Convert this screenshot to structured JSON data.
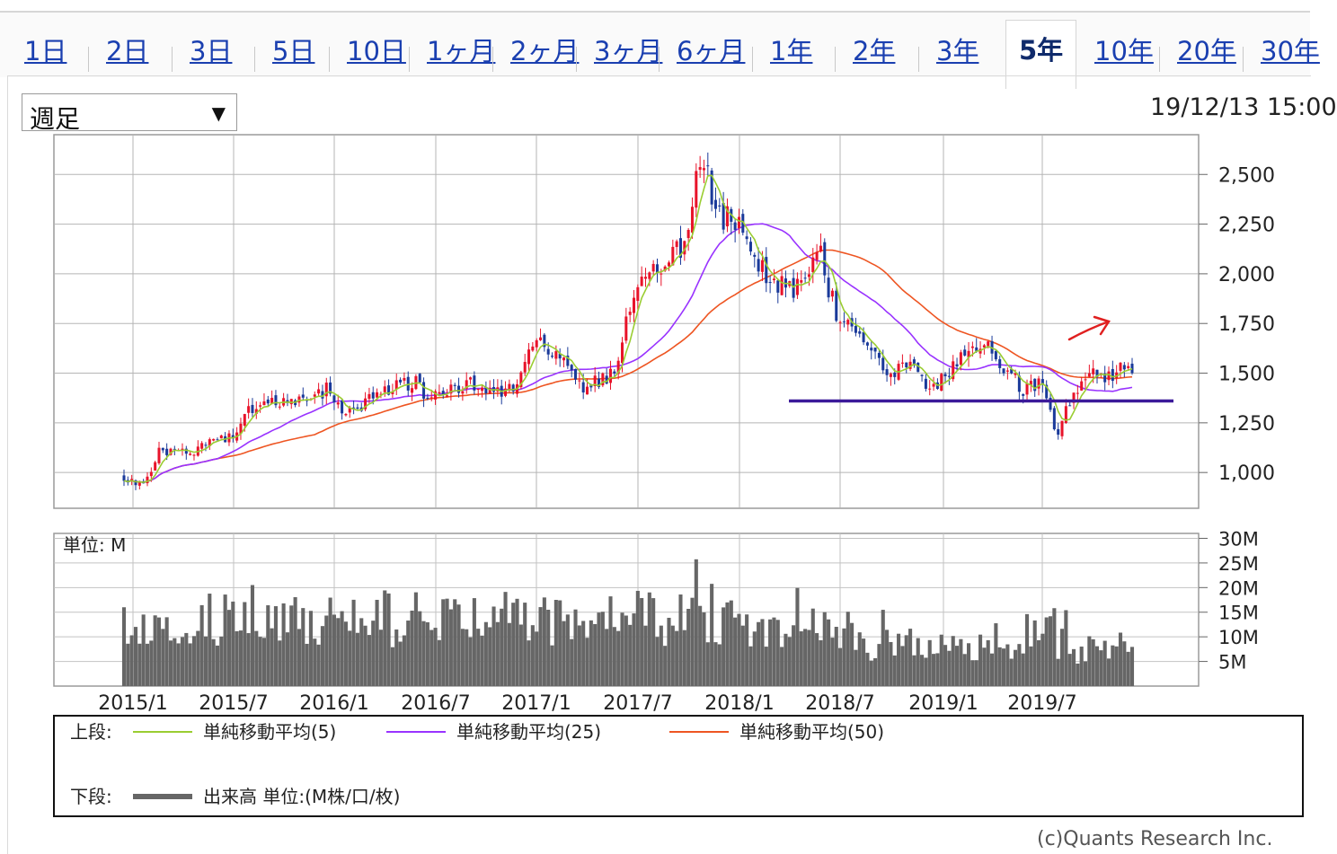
{
  "tabs": [
    {
      "label": "1日",
      "active": false
    },
    {
      "label": "2日",
      "active": false
    },
    {
      "label": "3日",
      "active": false
    },
    {
      "label": "5日",
      "active": false
    },
    {
      "label": "10日",
      "active": false
    },
    {
      "label": "1ヶ月",
      "active": false
    },
    {
      "label": "2ヶ月",
      "active": false
    },
    {
      "label": "3ヶ月",
      "active": false
    },
    {
      "label": "6ヶ月",
      "active": false
    },
    {
      "label": "1年",
      "active": false
    },
    {
      "label": "2年",
      "active": false
    },
    {
      "label": "3年",
      "active": false
    },
    {
      "label": "5年",
      "active": true
    },
    {
      "label": "10年",
      "active": false
    },
    {
      "label": "20年",
      "active": false
    },
    {
      "label": "30年",
      "active": false
    }
  ],
  "period_select": {
    "value": "週足"
  },
  "datetime": "19/12/13 15:00",
  "copyright": "(c)Quants Research Inc.",
  "colors": {
    "up_candle": "#e8132a",
    "down_candle": "#1a3a9a",
    "ma5": "#9acd32",
    "ma25": "#9933ff",
    "ma50": "#ee5522",
    "volume": "#666666",
    "support_line": "#3c1a9a",
    "annotation_arrow": "#e02020",
    "tab_link": "#1a3fb0"
  },
  "chart_data": [
    {
      "type": "candlestick",
      "x_ticks": [
        "2015/1",
        "2015/7",
        "2016/1",
        "2016/7",
        "2017/1",
        "2017/7",
        "2018/1",
        "2018/7",
        "2019/1",
        "2019/7"
      ],
      "y_ticks": [
        "1,000",
        "1,250",
        "1,500",
        "1,750",
        "2,000",
        "2,250",
        "2,500"
      ],
      "ylim": [
        820,
        2700
      ],
      "grid": true,
      "series": [
        {
          "name": "単純移動平均(5)",
          "style": "line"
        },
        {
          "name": "単純移動平均(25)",
          "style": "line"
        },
        {
          "name": "単純移動平均(50)",
          "style": "line"
        }
      ],
      "anchor_closes": [
        [
          "2015/1",
          980
        ],
        [
          "2015/2",
          930
        ],
        [
          "2015/3",
          1100
        ],
        [
          "2015/5",
          1110
        ],
        [
          "2015/7",
          1160
        ],
        [
          "2015/9",
          1380
        ],
        [
          "2015/11",
          1330
        ],
        [
          "2016/1",
          1420
        ],
        [
          "2016/2",
          1300
        ],
        [
          "2016/4",
          1380
        ],
        [
          "2016/6",
          1460
        ],
        [
          "2016/7",
          1380
        ],
        [
          "2016/9",
          1450
        ],
        [
          "2016/11",
          1390
        ],
        [
          "2016/12",
          1410
        ],
        [
          "2017/1",
          1660
        ],
        [
          "2017/2",
          1620
        ],
        [
          "2017/4",
          1440
        ],
        [
          "2017/5",
          1450
        ],
        [
          "2017/6",
          1500
        ],
        [
          "2017/7",
          1920
        ],
        [
          "2017/8",
          1980
        ],
        [
          "2017/10",
          2150
        ],
        [
          "2017/11",
          2580
        ],
        [
          "2017/12",
          2300
        ],
        [
          "2018/1",
          2250
        ],
        [
          "2018/2",
          2150
        ],
        [
          "2018/3",
          1950
        ],
        [
          "2018/5",
          1920
        ],
        [
          "2018/6",
          2100
        ],
        [
          "2018/7",
          1780
        ],
        [
          "2018/8",
          1700
        ],
        [
          "2018/9",
          1660
        ],
        [
          "2018/10",
          1480
        ],
        [
          "2018/11",
          1560
        ],
        [
          "2018/12",
          1470
        ],
        [
          "2019/1",
          1440
        ],
        [
          "2019/2",
          1530
        ],
        [
          "2019/3",
          1650
        ],
        [
          "2019/4",
          1620
        ],
        [
          "2019/5",
          1530
        ],
        [
          "2019/6",
          1420
        ],
        [
          "2019/7",
          1450
        ],
        [
          "2019/8",
          1200
        ],
        [
          "2019/9",
          1420
        ],
        [
          "2019/10",
          1500
        ],
        [
          "2019/11",
          1480
        ],
        [
          "2019/12",
          1520
        ]
      ],
      "annotations": {
        "support_level": 1360
      }
    },
    {
      "type": "bar",
      "title": "単位: M",
      "y_ticks": [
        "5M",
        "10M",
        "15M",
        "20M",
        "25M",
        "30M"
      ],
      "ylim": [
        0,
        31
      ],
      "series": [
        {
          "name": "出来高 単位:(M株/口/枚)"
        }
      ]
    }
  ],
  "legend": {
    "upper_label": "上段:",
    "lower_label": "下段:",
    "upper_items": [
      "単純移動平均(5)",
      "単純移動平均(25)",
      "単純移動平均(50)"
    ],
    "lower_item": "出来高 単位:(M株/口/枚)"
  }
}
